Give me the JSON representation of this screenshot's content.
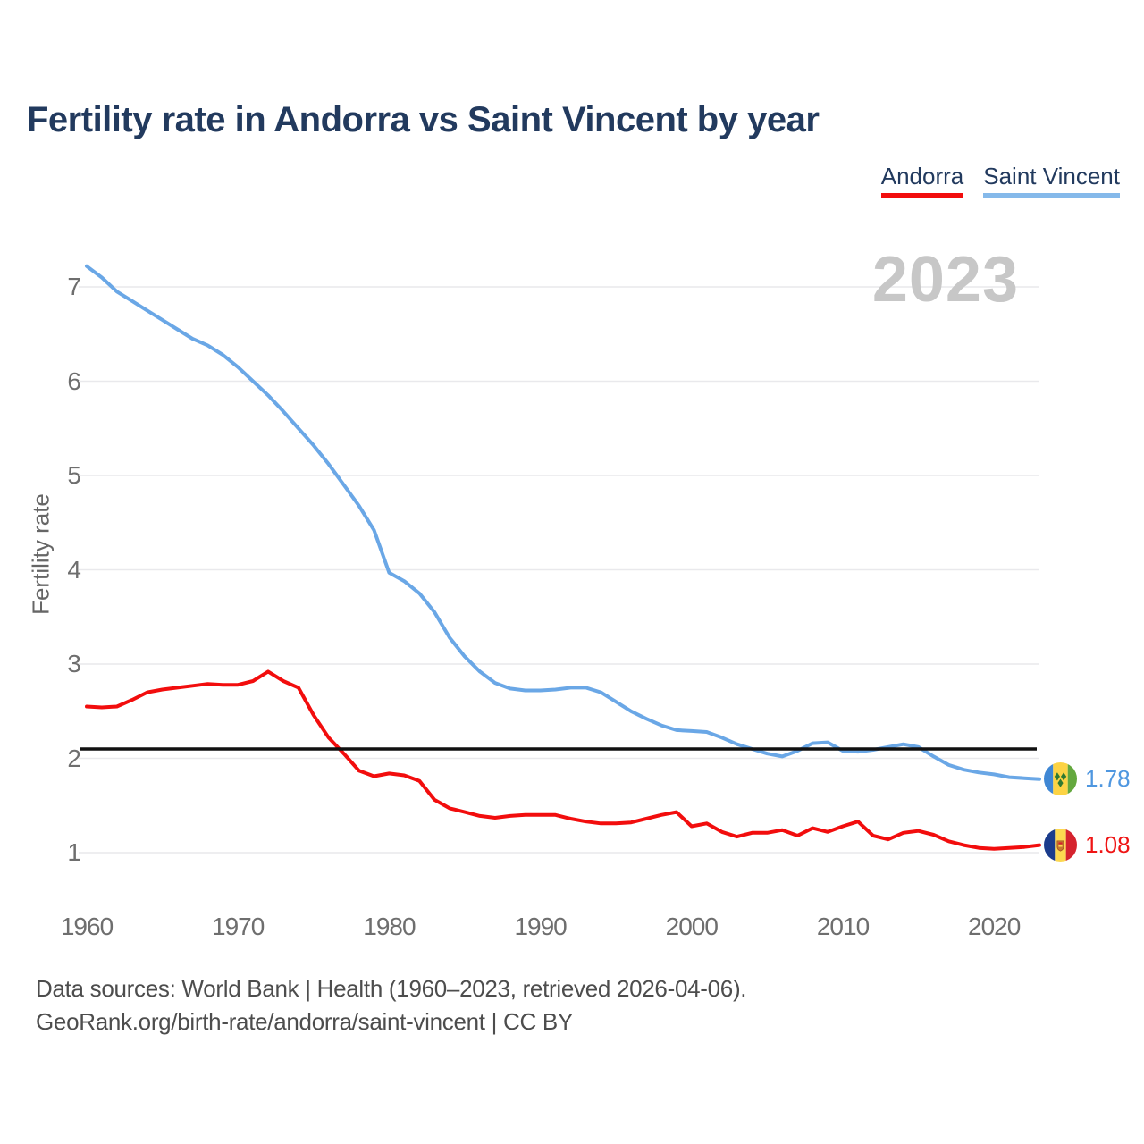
{
  "title": "Fertility rate in Andorra vs Saint Vincent by year",
  "legend": [
    {
      "label": "Andorra",
      "color": "#f20d0d"
    },
    {
      "label": "Saint Vincent",
      "color": "#85b9ea"
    }
  ],
  "watermark": "2023",
  "chart_data": {
    "type": "line",
    "title": "Fertility rate in Andorra vs Saint Vincent by year",
    "xlabel": "",
    "ylabel": "Fertility rate",
    "xlim": [
      1960,
      2023
    ],
    "ylim": [
      1,
      7.4
    ],
    "grid": true,
    "legend_position": "top-right",
    "x_ticks": [
      1960,
      1970,
      1980,
      1990,
      2000,
      2010,
      2020
    ],
    "y_ticks": [
      1,
      2,
      3,
      4,
      5,
      6,
      7
    ],
    "x_start_year": 1960,
    "reference_line": {
      "value": 2.1,
      "color": "#111111"
    },
    "series": [
      {
        "name": "Andorra",
        "color": "#f20d0d",
        "end_label": "1.08",
        "flag_icon": "andorra-flag-icon",
        "values": [
          2.55,
          2.54,
          2.55,
          2.62,
          2.7,
          2.73,
          2.75,
          2.77,
          2.79,
          2.78,
          2.78,
          2.82,
          2.92,
          2.82,
          2.75,
          2.46,
          2.22,
          2.05,
          1.87,
          1.81,
          1.84,
          1.82,
          1.76,
          1.56,
          1.47,
          1.43,
          1.39,
          1.37,
          1.39,
          1.4,
          1.4,
          1.4,
          1.36,
          1.33,
          1.31,
          1.31,
          1.32,
          1.36,
          1.4,
          1.43,
          1.28,
          1.31,
          1.22,
          1.17,
          1.21,
          1.21,
          1.24,
          1.18,
          1.26,
          1.22,
          1.28,
          1.33,
          1.18,
          1.14,
          1.21,
          1.23,
          1.19,
          1.12,
          1.08,
          1.05,
          1.04,
          1.05,
          1.06,
          1.08
        ]
      },
      {
        "name": "Saint Vincent",
        "color": "#6aa7e6",
        "end_label": "1.78",
        "flag_icon": "saint-vincent-flag-icon",
        "values": [
          7.22,
          7.1,
          6.95,
          6.85,
          6.75,
          6.65,
          6.55,
          6.45,
          6.38,
          6.28,
          6.15,
          6.0,
          5.85,
          5.68,
          5.5,
          5.32,
          5.12,
          4.9,
          4.68,
          4.42,
          3.97,
          3.88,
          3.75,
          3.55,
          3.28,
          3.08,
          2.92,
          2.8,
          2.74,
          2.72,
          2.72,
          2.73,
          2.75,
          2.75,
          2.7,
          2.6,
          2.5,
          2.42,
          2.35,
          2.3,
          2.29,
          2.28,
          2.22,
          2.15,
          2.1,
          2.05,
          2.02,
          2.08,
          2.16,
          2.17,
          2.08,
          2.07,
          2.09,
          2.12,
          2.15,
          2.12,
          2.02,
          1.93,
          1.88,
          1.85,
          1.83,
          1.8,
          1.79,
          1.78
        ]
      }
    ]
  },
  "end_labels": [
    {
      "series": "Saint Vincent",
      "value": "1.78"
    },
    {
      "series": "Andorra",
      "value": "1.08"
    }
  ],
  "footer": {
    "line1": "Data sources: World Bank | Health (1960–2023, retrieved 2026-04-06).",
    "line2": "GeoRank.org/birth-rate/andorra/saint-vincent | CC BY"
  },
  "colors": {
    "title": "#223a5e",
    "axis_text": "#6e6e6e",
    "grid": "#e9e9ec",
    "watermark": "#c7c7c7",
    "reference_line": "#111111",
    "footer_text": "#4d4d4d",
    "background": "#ffffff"
  }
}
